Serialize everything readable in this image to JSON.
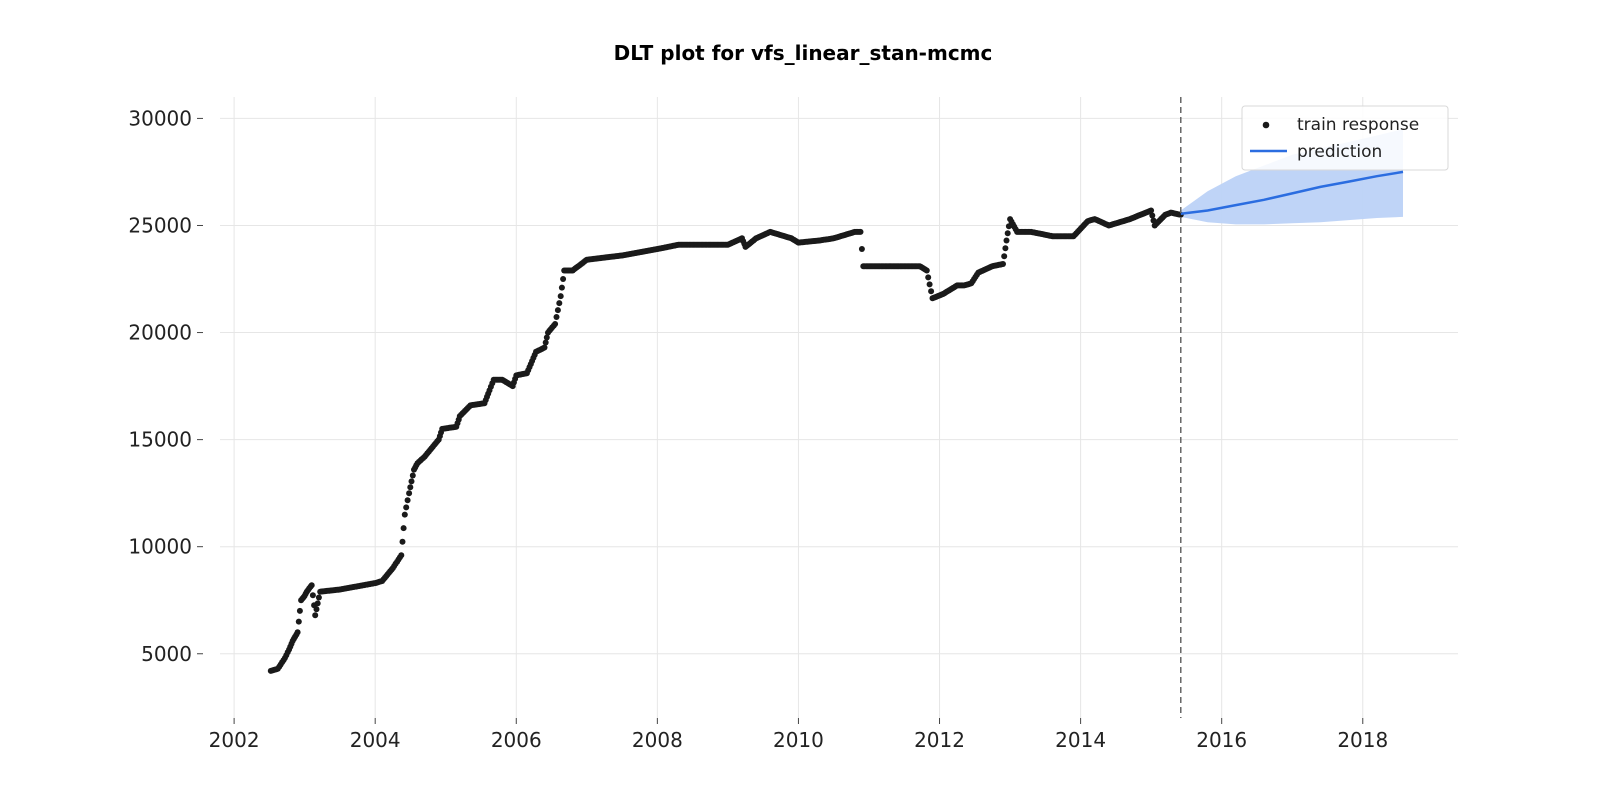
{
  "chart_data": {
    "type": "scatter",
    "title": "DLT plot for vfs_linear_stan-mcmc",
    "xlabel": "",
    "ylabel": "",
    "xlim": [
      2001.8,
      2019.35
    ],
    "ylim": [
      2000,
      31000
    ],
    "x_ticks": [
      "2002",
      "2004",
      "2006",
      "2008",
      "2010",
      "2012",
      "2014",
      "2016",
      "2018"
    ],
    "x_tick_values": [
      2002,
      2004,
      2006,
      2008,
      2010,
      2012,
      2014,
      2016,
      2018
    ],
    "y_ticks": [
      "5000",
      "10000",
      "15000",
      "20000",
      "25000",
      "30000"
    ],
    "y_tick_values": [
      5000,
      10000,
      15000,
      20000,
      25000,
      30000
    ],
    "grid": true,
    "legend_position": "top-right",
    "legend": [
      "train response",
      "prediction"
    ],
    "train_end": 2015.42,
    "colors": {
      "points": "#1a1a1a",
      "prediction": "#2b6de0",
      "band": "#bcd2f7",
      "split_line": "#666666",
      "grid": "#e6e6e6"
    },
    "series": [
      {
        "name": "train response",
        "kind": "scatter",
        "anchors": [
          [
            2002.52,
            4200
          ],
          [
            2002.62,
            4300
          ],
          [
            2002.72,
            4800
          ],
          [
            2002.78,
            5200
          ],
          [
            2002.83,
            5600
          ],
          [
            2002.9,
            6000
          ],
          [
            2002.95,
            7500
          ],
          [
            2003.0,
            7700
          ],
          [
            2003.03,
            7900
          ],
          [
            2003.1,
            8200
          ],
          [
            2003.15,
            6800
          ],
          [
            2003.22,
            7900
          ],
          [
            2003.5,
            8000
          ],
          [
            2004.0,
            8300
          ],
          [
            2004.1,
            8400
          ],
          [
            2004.25,
            9000
          ],
          [
            2004.37,
            9600
          ],
          [
            2004.42,
            11500
          ],
          [
            2004.48,
            12500
          ],
          [
            2004.55,
            13600
          ],
          [
            2004.6,
            13900
          ],
          [
            2004.7,
            14200
          ],
          [
            2004.9,
            15000
          ],
          [
            2004.95,
            15500
          ],
          [
            2005.15,
            15600
          ],
          [
            2005.2,
            16100
          ],
          [
            2005.35,
            16600
          ],
          [
            2005.55,
            16700
          ],
          [
            2005.62,
            17300
          ],
          [
            2005.68,
            17800
          ],
          [
            2005.8,
            17800
          ],
          [
            2005.95,
            17500
          ],
          [
            2006.0,
            18000
          ],
          [
            2006.15,
            18100
          ],
          [
            2006.28,
            19100
          ],
          [
            2006.4,
            19300
          ],
          [
            2006.45,
            20000
          ],
          [
            2006.55,
            20400
          ],
          [
            2006.63,
            21700
          ],
          [
            2006.68,
            22900
          ],
          [
            2006.8,
            22900
          ],
          [
            2007.0,
            23400
          ],
          [
            2007.5,
            23600
          ],
          [
            2008.0,
            23900
          ],
          [
            2008.3,
            24100
          ],
          [
            2008.7,
            24100
          ],
          [
            2009.0,
            24100
          ],
          [
            2009.2,
            24400
          ],
          [
            2009.25,
            24000
          ],
          [
            2009.4,
            24400
          ],
          [
            2009.6,
            24700
          ],
          [
            2009.9,
            24400
          ],
          [
            2010.0,
            24200
          ],
          [
            2010.3,
            24300
          ],
          [
            2010.5,
            24400
          ],
          [
            2010.8,
            24700
          ],
          [
            2010.88,
            24700
          ],
          [
            2010.92,
            23100
          ],
          [
            2011.0,
            23100
          ],
          [
            2011.5,
            23100
          ],
          [
            2011.72,
            23100
          ],
          [
            2011.82,
            22900
          ],
          [
            2011.9,
            21600
          ],
          [
            2012.05,
            21800
          ],
          [
            2012.15,
            22000
          ],
          [
            2012.25,
            22200
          ],
          [
            2012.35,
            22200
          ],
          [
            2012.45,
            22300
          ],
          [
            2012.55,
            22800
          ],
          [
            2012.75,
            23100
          ],
          [
            2012.9,
            23200
          ],
          [
            2012.95,
            24300
          ],
          [
            2013.0,
            25300
          ],
          [
            2013.1,
            24700
          ],
          [
            2013.3,
            24700
          ],
          [
            2013.6,
            24500
          ],
          [
            2013.9,
            24500
          ],
          [
            2014.1,
            25200
          ],
          [
            2014.2,
            25300
          ],
          [
            2014.4,
            25000
          ],
          [
            2014.7,
            25300
          ],
          [
            2015.0,
            25700
          ],
          [
            2015.05,
            25000
          ],
          [
            2015.2,
            25500
          ],
          [
            2015.28,
            25600
          ],
          [
            2015.42,
            25500
          ]
        ]
      },
      {
        "name": "prediction",
        "kind": "line",
        "x": [
          2015.42,
          2015.8,
          2016.2,
          2016.6,
          2017.0,
          2017.4,
          2017.8,
          2018.2,
          2018.57
        ],
        "y": [
          25550,
          25700,
          25950,
          26200,
          26500,
          26800,
          27050,
          27300,
          27500
        ],
        "upper": [
          25700,
          26600,
          27300,
          27800,
          28300,
          28600,
          28900,
          29200,
          29500
        ],
        "lower": [
          25400,
          25150,
          25050,
          25050,
          25100,
          25150,
          25250,
          25350,
          25400
        ]
      }
    ]
  }
}
